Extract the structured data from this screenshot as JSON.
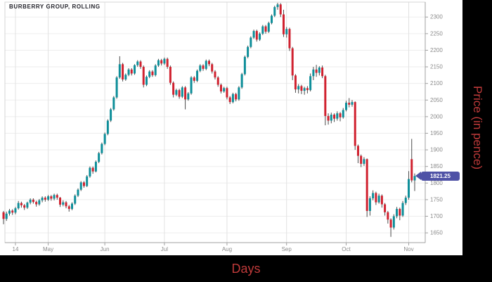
{
  "window": {
    "title": "BURBERRY GROUP, ROLLING"
  },
  "axes": {
    "x_title": "Days",
    "y_title": "Price (in pence)"
  },
  "last_price_tag": {
    "label": "1821.25"
  },
  "chart_data": {
    "type": "candlestick",
    "title": "BURBERRY GROUP, ROLLING",
    "xlabel": "Days",
    "ylabel": "Price (in pence)",
    "ylim": [
      1628,
      2345
    ],
    "grid": true,
    "price_ticks": [
      1650,
      1700,
      1750,
      1800,
      1850,
      1900,
      1950,
      2000,
      2050,
      2100,
      2150,
      2200,
      2250,
      2300
    ],
    "month_ticks": [
      {
        "label": "14",
        "i": 4
      },
      {
        "label": "May",
        "i": 15
      },
      {
        "label": "Jun",
        "i": 34
      },
      {
        "label": "Jul",
        "i": 54
      },
      {
        "label": "Aug",
        "i": 75
      },
      {
        "label": "Sep",
        "i": 95
      },
      {
        "label": "Oct",
        "i": 115
      },
      {
        "label": "Nov",
        "i": 136
      }
    ],
    "last_price": 1821.25,
    "colors": {
      "up": "#0e8e99",
      "down": "#d0212f",
      "wick": "#4a4a4a",
      "tag": "#4f52a6",
      "axis_title_red": "#bf3a3a",
      "grid_h": "#ededed",
      "grid_v": "#e2e2e2",
      "border": "#d6d6d6",
      "axis_line": "#a0a0a0",
      "tick_text": "#8b8b8b"
    },
    "candles": [
      [
        1712,
        1716,
        1676,
        1692
      ],
      [
        1692,
        1714,
        1686,
        1708
      ],
      [
        1708,
        1722,
        1702,
        1717
      ],
      [
        1717,
        1721,
        1704,
        1711
      ],
      [
        1711,
        1728,
        1706,
        1724
      ],
      [
        1724,
        1746,
        1720,
        1740
      ],
      [
        1740,
        1744,
        1726,
        1733
      ],
      [
        1733,
        1737,
        1719,
        1726
      ],
      [
        1726,
        1744,
        1722,
        1741
      ],
      [
        1741,
        1754,
        1736,
        1750
      ],
      [
        1750,
        1754,
        1738,
        1743
      ],
      [
        1743,
        1747,
        1729,
        1736
      ],
      [
        1736,
        1752,
        1732,
        1748
      ],
      [
        1748,
        1760,
        1742,
        1756
      ],
      [
        1756,
        1760,
        1744,
        1750
      ],
      [
        1750,
        1764,
        1746,
        1760
      ],
      [
        1760,
        1764,
        1747,
        1753
      ],
      [
        1753,
        1768,
        1748,
        1764
      ],
      [
        1764,
        1768,
        1750,
        1756
      ],
      [
        1756,
        1758,
        1728,
        1735
      ],
      [
        1735,
        1748,
        1730,
        1742
      ],
      [
        1742,
        1746,
        1724,
        1730
      ],
      [
        1730,
        1734,
        1714,
        1722
      ],
      [
        1722,
        1742,
        1718,
        1738
      ],
      [
        1738,
        1766,
        1734,
        1762
      ],
      [
        1762,
        1784,
        1758,
        1780
      ],
      [
        1780,
        1806,
        1776,
        1802
      ],
      [
        1802,
        1806,
        1786,
        1791
      ],
      [
        1791,
        1824,
        1788,
        1820
      ],
      [
        1820,
        1850,
        1816,
        1846
      ],
      [
        1846,
        1850,
        1828,
        1835
      ],
      [
        1835,
        1868,
        1832,
        1864
      ],
      [
        1864,
        1894,
        1860,
        1890
      ],
      [
        1890,
        1922,
        1886,
        1918
      ],
      [
        1918,
        1952,
        1914,
        1948
      ],
      [
        1948,
        1992,
        1944,
        1988
      ],
      [
        1988,
        2026,
        1984,
        2022
      ],
      [
        2022,
        2062,
        2018,
        2058
      ],
      [
        2058,
        2122,
        2054,
        2118
      ],
      [
        2118,
        2182,
        2114,
        2158
      ],
      [
        2158,
        2162,
        2106,
        2112
      ],
      [
        2112,
        2130,
        2108,
        2126
      ],
      [
        2126,
        2146,
        2122,
        2142
      ],
      [
        2142,
        2146,
        2124,
        2130
      ],
      [
        2130,
        2158,
        2126,
        2155
      ],
      [
        2155,
        2170,
        2150,
        2166
      ],
      [
        2166,
        2170,
        2144,
        2150
      ],
      [
        2150,
        2154,
        2088,
        2096
      ],
      [
        2096,
        2124,
        2092,
        2120
      ],
      [
        2120,
        2140,
        2116,
        2136
      ],
      [
        2136,
        2140,
        2120,
        2125
      ],
      [
        2125,
        2158,
        2121,
        2154
      ],
      [
        2154,
        2174,
        2150,
        2170
      ],
      [
        2170,
        2174,
        2154,
        2160
      ],
      [
        2160,
        2178,
        2156,
        2174
      ],
      [
        2174,
        2178,
        2144,
        2150
      ],
      [
        2150,
        2154,
        2096,
        2102
      ],
      [
        2102,
        2106,
        2058,
        2066
      ],
      [
        2066,
        2084,
        2062,
        2080
      ],
      [
        2080,
        2084,
        2054,
        2060
      ],
      [
        2060,
        2092,
        2056,
        2088
      ],
      [
        2088,
        2092,
        2022,
        2052
      ],
      [
        2052,
        2074,
        2048,
        2070
      ],
      [
        2070,
        2122,
        2066,
        2118
      ],
      [
        2118,
        2122,
        2102,
        2108
      ],
      [
        2108,
        2142,
        2104,
        2138
      ],
      [
        2138,
        2158,
        2134,
        2154
      ],
      [
        2154,
        2158,
        2138,
        2144
      ],
      [
        2144,
        2172,
        2140,
        2168
      ],
      [
        2168,
        2172,
        2152,
        2158
      ],
      [
        2158,
        2162,
        2130,
        2136
      ],
      [
        2136,
        2140,
        2112,
        2118
      ],
      [
        2118,
        2122,
        2090,
        2096
      ],
      [
        2096,
        2100,
        2070,
        2076
      ],
      [
        2076,
        2090,
        2072,
        2086
      ],
      [
        2086,
        2090,
        2052,
        2058
      ],
      [
        2058,
        2062,
        2038,
        2044
      ],
      [
        2044,
        2072,
        2040,
        2068
      ],
      [
        2068,
        2072,
        2046,
        2052
      ],
      [
        2052,
        2092,
        2048,
        2088
      ],
      [
        2088,
        2132,
        2084,
        2128
      ],
      [
        2128,
        2184,
        2124,
        2180
      ],
      [
        2180,
        2214,
        2176,
        2210
      ],
      [
        2210,
        2242,
        2206,
        2238
      ],
      [
        2238,
        2262,
        2234,
        2258
      ],
      [
        2258,
        2262,
        2226,
        2232
      ],
      [
        2232,
        2254,
        2228,
        2250
      ],
      [
        2250,
        2276,
        2246,
        2272
      ],
      [
        2272,
        2276,
        2250,
        2256
      ],
      [
        2256,
        2286,
        2252,
        2282
      ],
      [
        2282,
        2308,
        2278,
        2304
      ],
      [
        2304,
        2334,
        2300,
        2330
      ],
      [
        2330,
        2343,
        2322,
        2338
      ],
      [
        2338,
        2342,
        2300,
        2308
      ],
      [
        2308,
        2322,
        2240,
        2248
      ],
      [
        2248,
        2270,
        2238,
        2264
      ],
      [
        2264,
        2268,
        2198,
        2206
      ],
      [
        2206,
        2210,
        2110,
        2124
      ],
      [
        2124,
        2128,
        2072,
        2082
      ],
      [
        2082,
        2098,
        2070,
        2092
      ],
      [
        2092,
        2096,
        2068,
        2078
      ],
      [
        2078,
        2090,
        2066,
        2086
      ],
      [
        2086,
        2092,
        2070,
        2080
      ],
      [
        2080,
        2130,
        2076,
        2122
      ],
      [
        2122,
        2150,
        2110,
        2142
      ],
      [
        2142,
        2156,
        2120,
        2132
      ],
      [
        2132,
        2152,
        2124,
        2148
      ],
      [
        2148,
        2154,
        2116,
        2122
      ],
      [
        2122,
        2126,
        1974,
        2002
      ],
      [
        2002,
        2010,
        1976,
        1988
      ],
      [
        1988,
        2012,
        1980,
        2006
      ],
      [
        2006,
        2010,
        1984,
        1994
      ],
      [
        1994,
        2016,
        1988,
        2010
      ],
      [
        2010,
        2014,
        1986,
        1998
      ],
      [
        1998,
        2026,
        1994,
        2020
      ],
      [
        2020,
        2048,
        2016,
        2042
      ],
      [
        2042,
        2056,
        2028,
        2036
      ],
      [
        2036,
        2050,
        2030,
        2044
      ],
      [
        2044,
        2046,
        1900,
        1912
      ],
      [
        1912,
        1916,
        1860,
        1882
      ],
      [
        1882,
        1886,
        1848,
        1858
      ],
      [
        1858,
        1878,
        1852,
        1872
      ],
      [
        1872,
        1874,
        1698,
        1716
      ],
      [
        1716,
        1760,
        1702,
        1754
      ],
      [
        1754,
        1778,
        1748,
        1770
      ],
      [
        1770,
        1774,
        1734,
        1742
      ],
      [
        1742,
        1768,
        1738,
        1762
      ],
      [
        1762,
        1766,
        1726,
        1736
      ],
      [
        1736,
        1740,
        1702,
        1712
      ],
      [
        1712,
        1716,
        1678,
        1690
      ],
      [
        1690,
        1694,
        1638,
        1666
      ],
      [
        1666,
        1706,
        1660,
        1700
      ],
      [
        1700,
        1728,
        1694,
        1722
      ],
      [
        1722,
        1726,
        1688,
        1702
      ],
      [
        1702,
        1746,
        1698,
        1740
      ],
      [
        1740,
        1762,
        1734,
        1756
      ],
      [
        1756,
        1836,
        1750,
        1812
      ],
      [
        1872,
        1933,
        1802,
        1808
      ],
      [
        1808,
        1829,
        1776,
        1821.25
      ]
    ]
  }
}
